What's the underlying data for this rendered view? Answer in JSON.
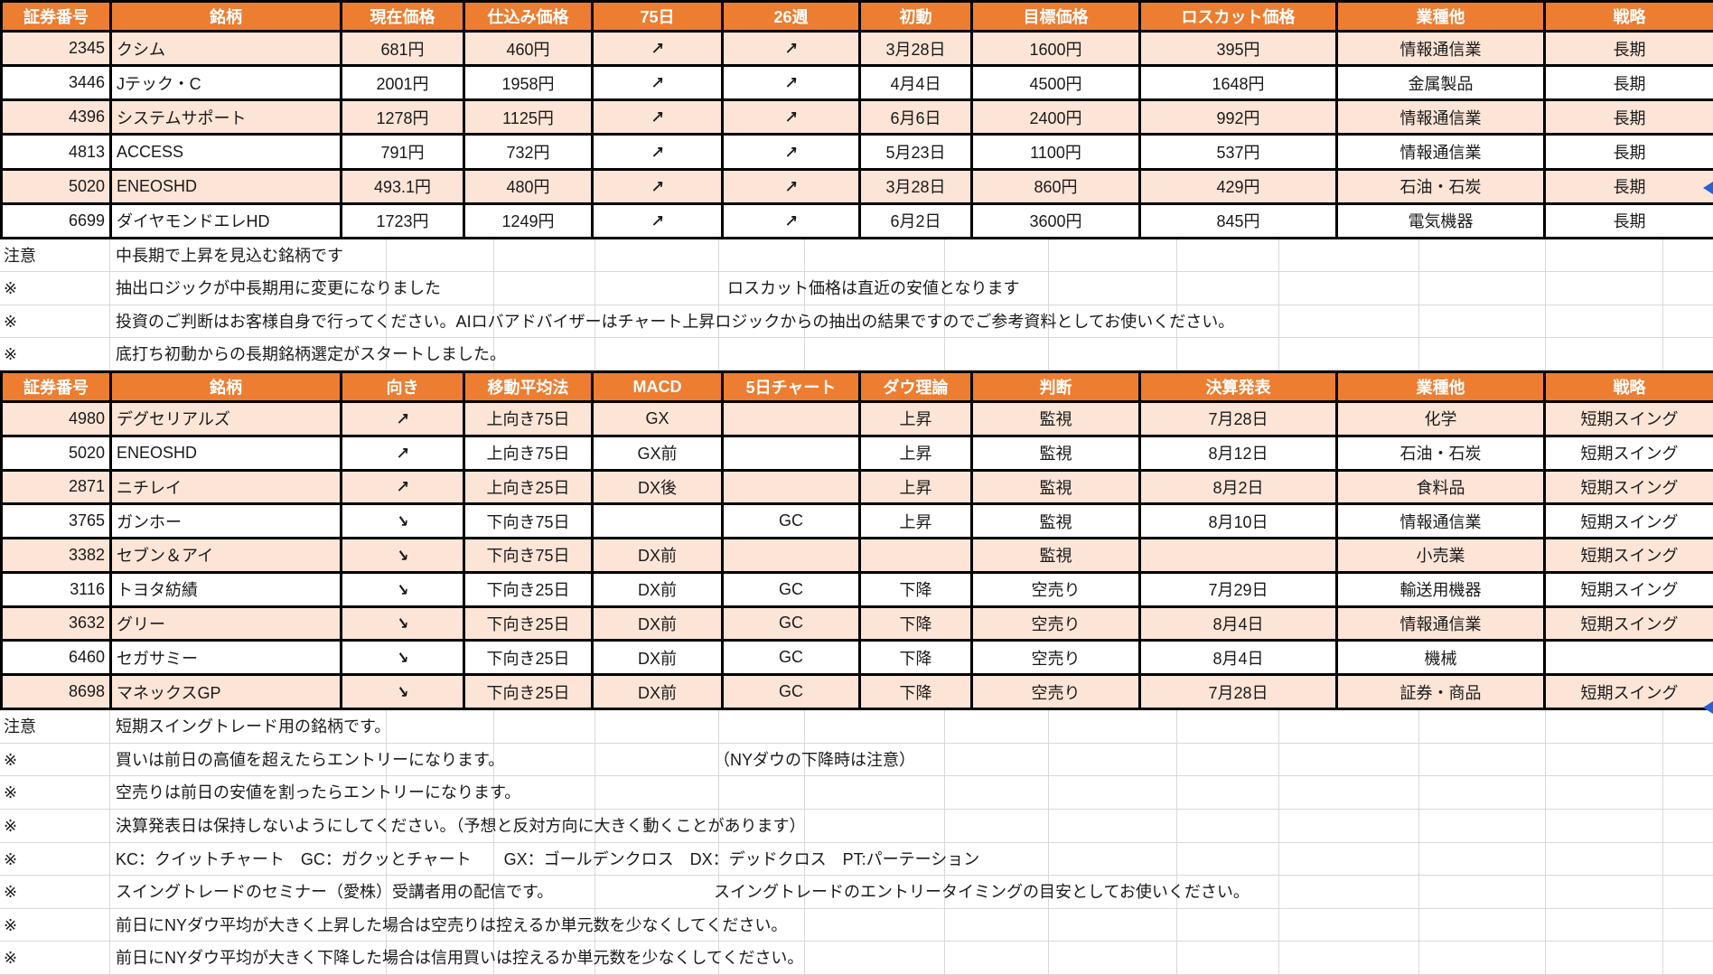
{
  "colors": {
    "header_bg": "#ED7D31",
    "header_text": "#FFFFFF",
    "row_alt_bg": "#FCE4D6",
    "table_border": "#000000",
    "gridline": "#D9D9D9",
    "artifact_blue": "#2E5FD0"
  },
  "icons": {
    "up_right_arrow": "↗",
    "down_right_arrow": "↘"
  },
  "tables": [
    {
      "title": "long-term-picks",
      "headers": [
        "証券番号",
        "銘柄",
        "現在価格",
        "仕込み価格",
        "75日",
        "26週",
        "初動",
        "目標価格",
        "ロスカット価格",
        "業種他",
        "戦略"
      ],
      "rows": [
        {
          "cells": [
            "2345",
            "クシム",
            "681円",
            "460円",
            "↗",
            "↗",
            "3月28日",
            "1600円",
            "395円",
            "情報通信業",
            "長期"
          ]
        },
        {
          "cells": [
            "3446",
            "Jテック・C",
            "2001円",
            "1958円",
            "↗",
            "↗",
            "4月4日",
            "4500円",
            "1648円",
            "金属製品",
            "長期"
          ]
        },
        {
          "cells": [
            "4396",
            "システムサポート",
            "1278円",
            "1125円",
            "↗",
            "↗",
            "6月6日",
            "2400円",
            "992円",
            "情報通信業",
            "長期"
          ]
        },
        {
          "cells": [
            "4813",
            "ACCESS",
            "791円",
            "732円",
            "↗",
            "↗",
            "5月23日",
            "1100円",
            "537円",
            "情報通信業",
            "長期"
          ]
        },
        {
          "cells": [
            "5020",
            "ENEOSHD",
            "493.1円",
            "480円",
            "↗",
            "↗",
            "3月28日",
            "860円",
            "429円",
            "石油・石炭",
            "長期"
          ]
        },
        {
          "cells": [
            "6699",
            "ダイヤモンドエレHD",
            "1723円",
            "1249円",
            "↗",
            "↗",
            "6月2日",
            "3600円",
            "845円",
            "電気機器",
            "長期"
          ]
        }
      ]
    },
    {
      "title": "short-swing-picks",
      "headers": [
        "証券番号",
        "銘柄",
        "向き",
        "移動平均法",
        "MACD",
        "5日チャート",
        "ダウ理論",
        "判断",
        "決算発表",
        "業種他",
        "戦略"
      ],
      "rows": [
        {
          "cells": [
            "4980",
            "デグセリアルズ",
            "↗",
            "上向き75日",
            "GX",
            "",
            "上昇",
            "監視",
            "7月28日",
            "化学",
            "短期スイング"
          ]
        },
        {
          "cells": [
            "5020",
            "ENEOSHD",
            "↗",
            "上向き75日",
            "GX前",
            "",
            "上昇",
            "監視",
            "8月12日",
            "石油・石炭",
            "短期スイング"
          ]
        },
        {
          "cells": [
            "2871",
            "ニチレイ",
            "↗",
            "上向き25日",
            "DX後",
            "",
            "上昇",
            "監視",
            "8月2日",
            "食料品",
            "短期スイング"
          ]
        },
        {
          "cells": [
            "3765",
            "ガンホー",
            "↘",
            "下向き75日",
            "",
            "GC",
            "上昇",
            "監視",
            "8月10日",
            "情報通信業",
            "短期スイング"
          ]
        },
        {
          "cells": [
            "3382",
            "セブン＆アイ",
            "↘",
            "下向き75日",
            "DX前",
            "",
            "",
            "監視",
            "",
            "小売業",
            "短期スイング"
          ]
        },
        {
          "cells": [
            "3116",
            "トヨタ紡績",
            "↘",
            "下向き25日",
            "DX前",
            "GC",
            "下降",
            "空売り",
            "7月29日",
            "輸送用機器",
            "短期スイング"
          ]
        },
        {
          "cells": [
            "3632",
            "グリー",
            "↘",
            "下向き25日",
            "DX前",
            "GC",
            "下降",
            "空売り",
            "8月4日",
            "情報通信業",
            "短期スイング"
          ]
        },
        {
          "cells": [
            "6460",
            "セガサミー",
            "↘",
            "下向き25日",
            "DX前",
            "GC",
            "下降",
            "空売り",
            "8月4日",
            "機械",
            ""
          ]
        },
        {
          "cells": [
            "8698",
            "マネックスGP",
            "↘",
            "下向き25日",
            "DX前",
            "GC",
            "下降",
            "空売り",
            "7月28日",
            "証券・商品",
            "短期スイング"
          ]
        }
      ]
    }
  ],
  "notes_top": [
    {
      "label": "注意",
      "text": "中長期で上昇を見込む銘柄です",
      "text2": ""
    },
    {
      "label": "※",
      "text": "抽出ロジックが中長期用に変更になりました",
      "text2": "ロスカット価格は直近の安値となります"
    },
    {
      "label": "※",
      "text": "投資のご判断はお客様自身で行ってください。AIロバアドバイザーはチャート上昇ロジックからの抽出の結果ですのでご参考資料としてお使いください。",
      "text2": ""
    },
    {
      "label": "※",
      "text": "底打ち初動からの長期銘柄選定がスタートしました。",
      "text2": ""
    }
  ],
  "notes_bottom": [
    {
      "label": "注意",
      "text": "短期スイングトレード用の銘柄です。",
      "text2": ""
    },
    {
      "label": "※",
      "text": "買いは前日の高値を超えたらエントリーになります。",
      "text2": "（NYダウの下降時は注意）"
    },
    {
      "label": "※",
      "text": "空売りは前日の安値を割ったらエントリーになります。",
      "text2": ""
    },
    {
      "label": "※",
      "text": "決算発表日は保持しないようにしてください。（予想と反対方向に大きく動くことがあります）",
      "text2": ""
    },
    {
      "label": "※",
      "text": "KC：クイットチャート　GC：ガクッとチャート　　GX：ゴールデンクロス　DX：デッドクロス　PT:パーテーション",
      "text2": ""
    },
    {
      "label": "※",
      "text": "スイングトレードのセミナー（愛株）受講者用の配信です。",
      "text2": "スイングトレードのエントリータイミングの目安としてお使いください。"
    },
    {
      "label": "※",
      "text": "前日にNYダウ平均が大きく上昇した場合は空売りは控えるか単元数を少なくしてください。",
      "text2": ""
    },
    {
      "label": "※",
      "text": "前日にNYダウ平均が大きく下降した場合は信用買いは控えるか単元数を少なくしてください。",
      "text2": ""
    }
  ]
}
